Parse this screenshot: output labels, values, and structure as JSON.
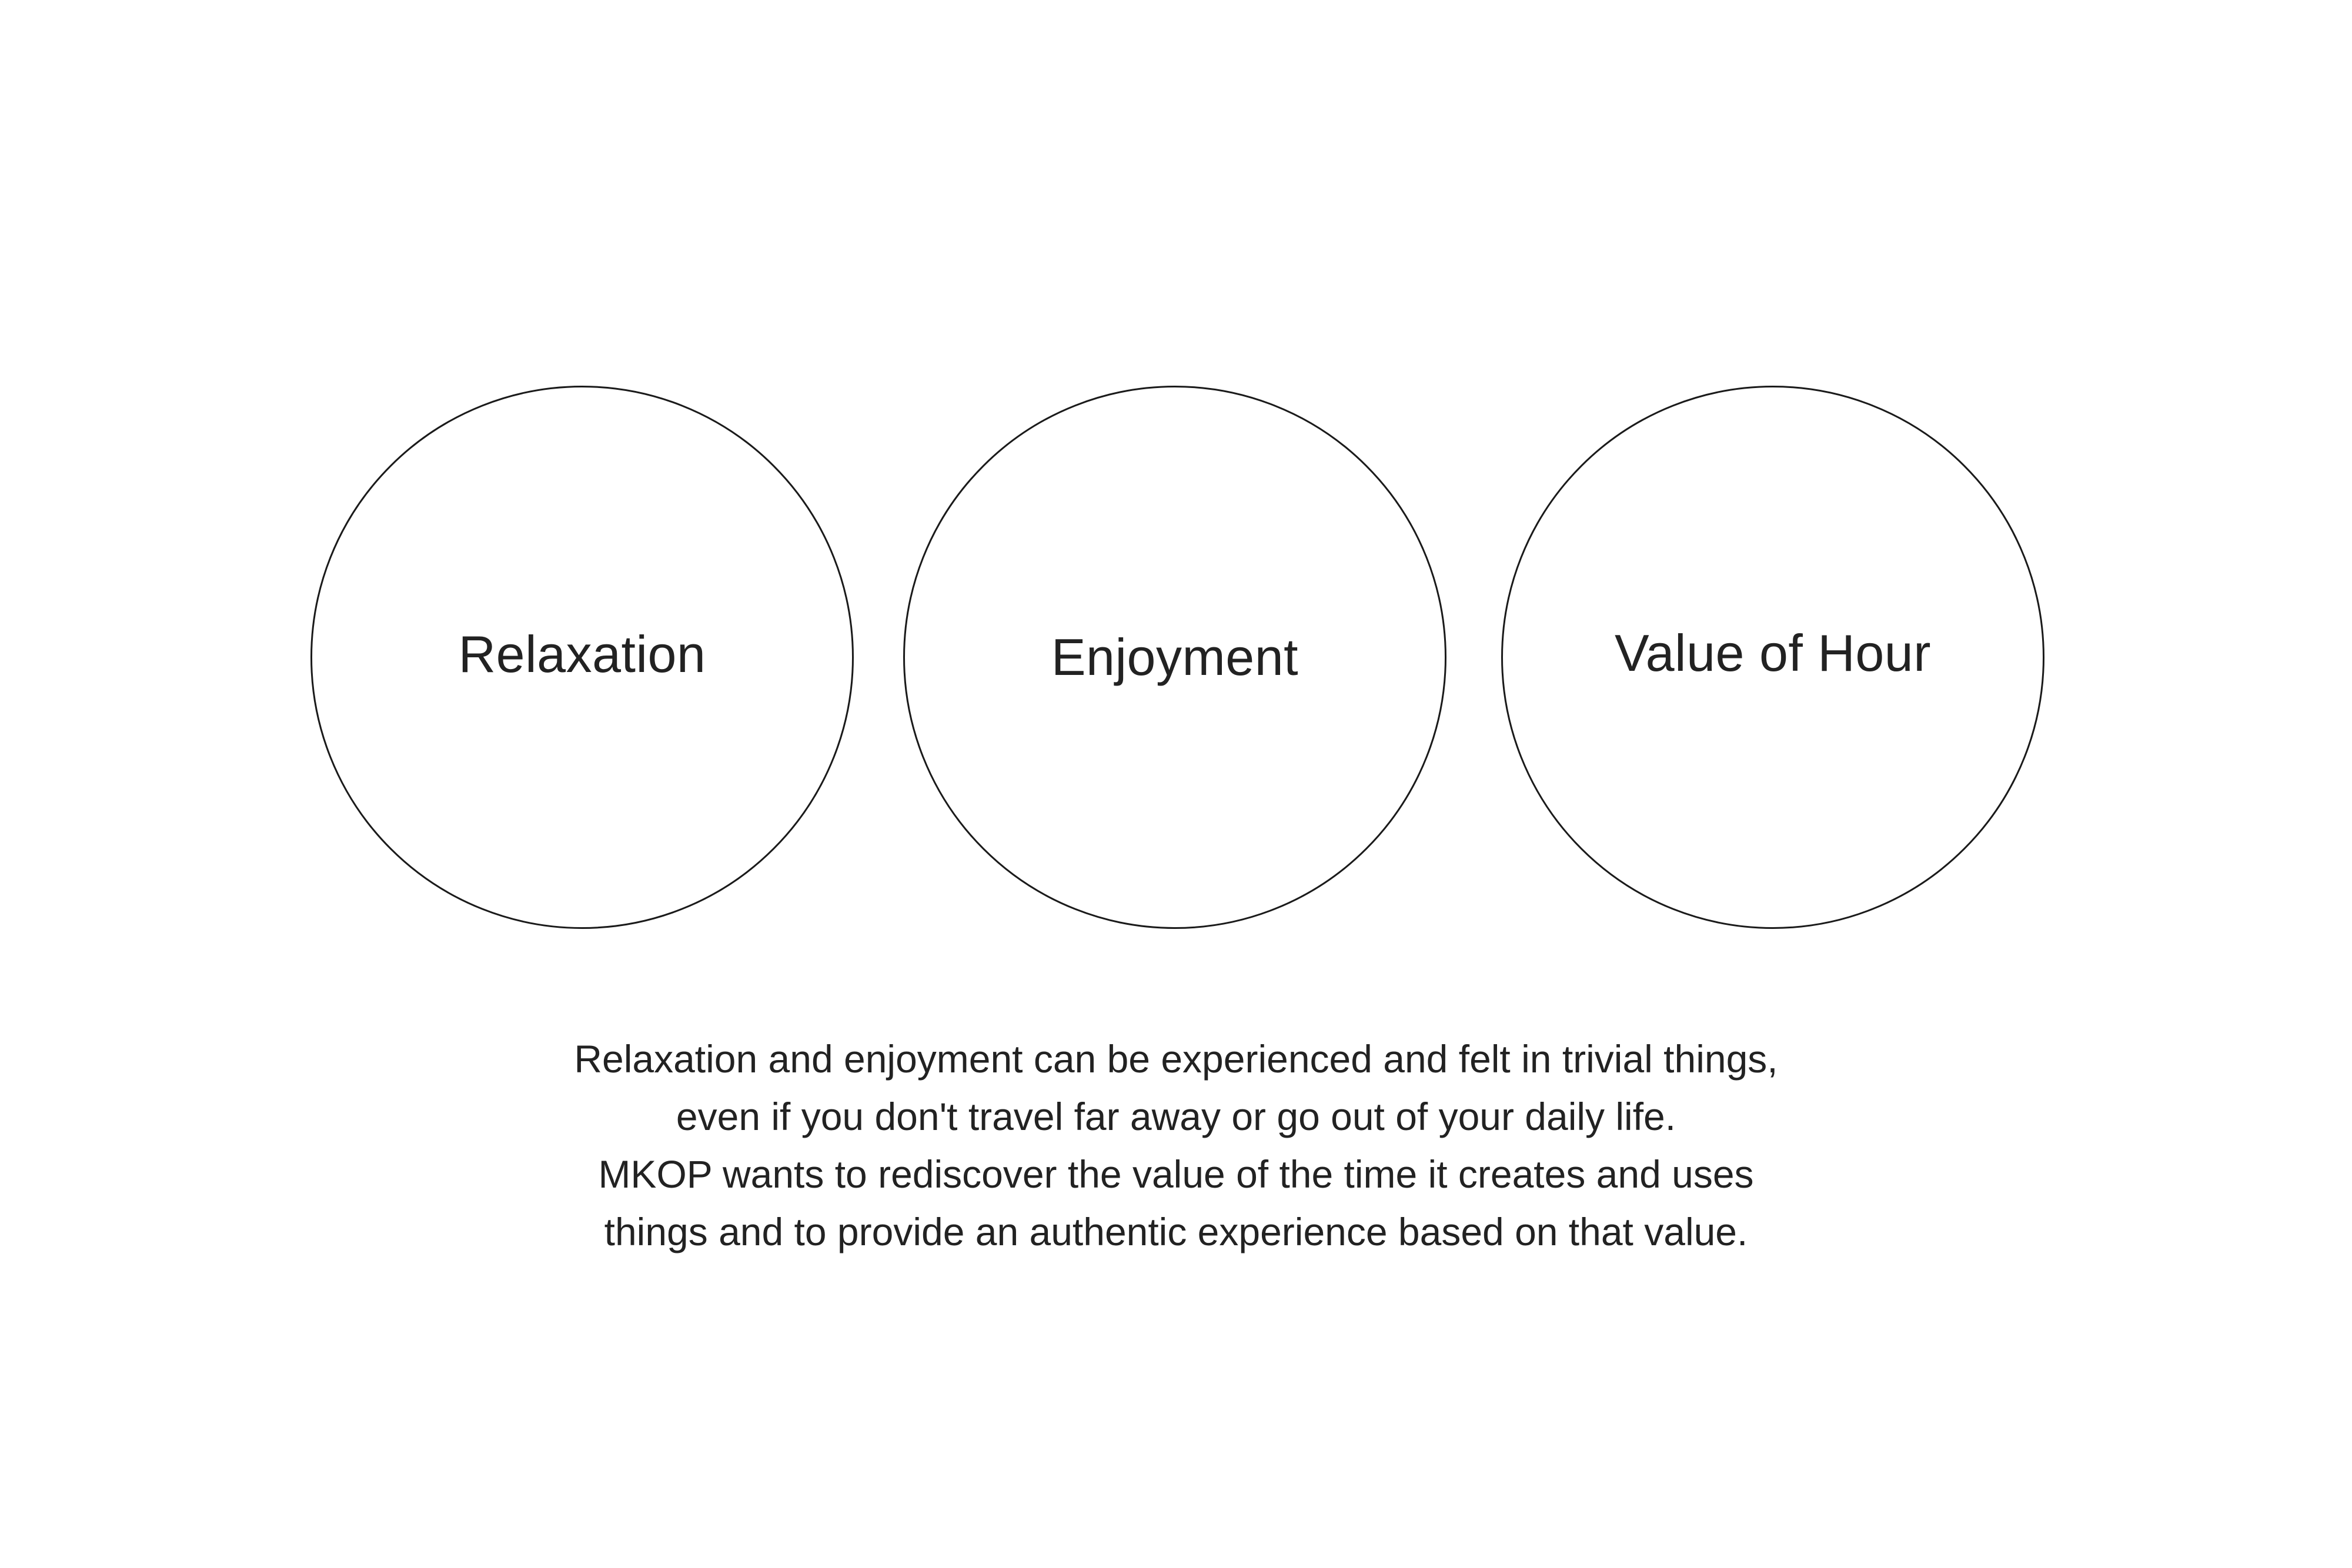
{
  "circles": [
    {
      "label": "Relaxation"
    },
    {
      "label": "Enjoyment"
    },
    {
      "label": "Value of Hour"
    }
  ],
  "description": {
    "lines": [
      "Relaxation and enjoyment can be experienced and felt in trivial things,",
      "even if you don't travel far away or go out of your daily life.",
      "MKOP wants to rediscover the value of the time it creates and uses",
      "things and to provide an authentic experience based on that value."
    ]
  },
  "colors": {
    "stroke": "#1a1a1a",
    "text": "#222222",
    "background": "#ffffff"
  }
}
